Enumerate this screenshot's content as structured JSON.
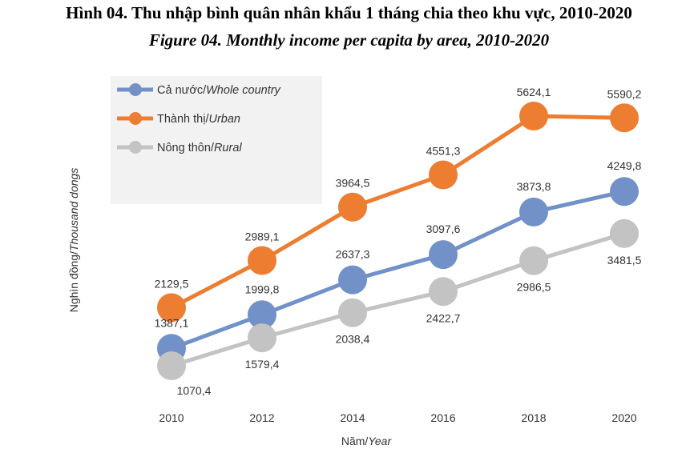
{
  "title_vi": "Hình 04. Thu nhập bình quân nhân khẩu 1 tháng chia theo khu vực, 2010-2020",
  "title_en": "Figure 04. Monthly income per capita by area, 2010-2020",
  "colors": {
    "whole": "#7291c8",
    "urban": "#ec7d31",
    "rural": "#c3c3c3",
    "legend_bg": "#f2f2f2"
  },
  "chart_data": {
    "type": "line",
    "x": [
      "2010",
      "2012",
      "2014",
      "2016",
      "2018",
      "2020"
    ],
    "xlabel_plain": "Năm/",
    "xlabel_italic": "Year",
    "ylabel_plain": "Nghìn đồng/",
    "ylabel_italic": "Thousand dongs",
    "ylim": [
      1000,
      5700
    ],
    "grid": false,
    "legend_position": "top-left",
    "series": [
      {
        "key": "whole",
        "name_plain": "Cả nước/",
        "name_italic": "Whole country",
        "values": [
          1387.1,
          1999.8,
          2637.3,
          3097.6,
          3873.8,
          4249.8
        ],
        "labels": [
          "1387,1",
          "1999,8",
          "2637,3",
          "3097,6",
          "3873,8",
          "4249,8"
        ]
      },
      {
        "key": "urban",
        "name_plain": "Thành thị/",
        "name_italic": "Urban",
        "values": [
          2129.5,
          2989.1,
          3964.5,
          4551.3,
          5624.1,
          5590.2
        ],
        "labels": [
          "2129,5",
          "2989,1",
          "3964,5",
          "4551,3",
          "5624,1",
          "5590,2"
        ]
      },
      {
        "key": "rural",
        "name_plain": "Nông thôn/",
        "name_italic": "Rural",
        "values": [
          1070.4,
          1579.4,
          2038.4,
          2422.7,
          2986.5,
          3481.5
        ],
        "labels": [
          "1070,4",
          "1579,4",
          "2038,4",
          "2422,7",
          "2986,5",
          "3481,5"
        ]
      }
    ]
  }
}
